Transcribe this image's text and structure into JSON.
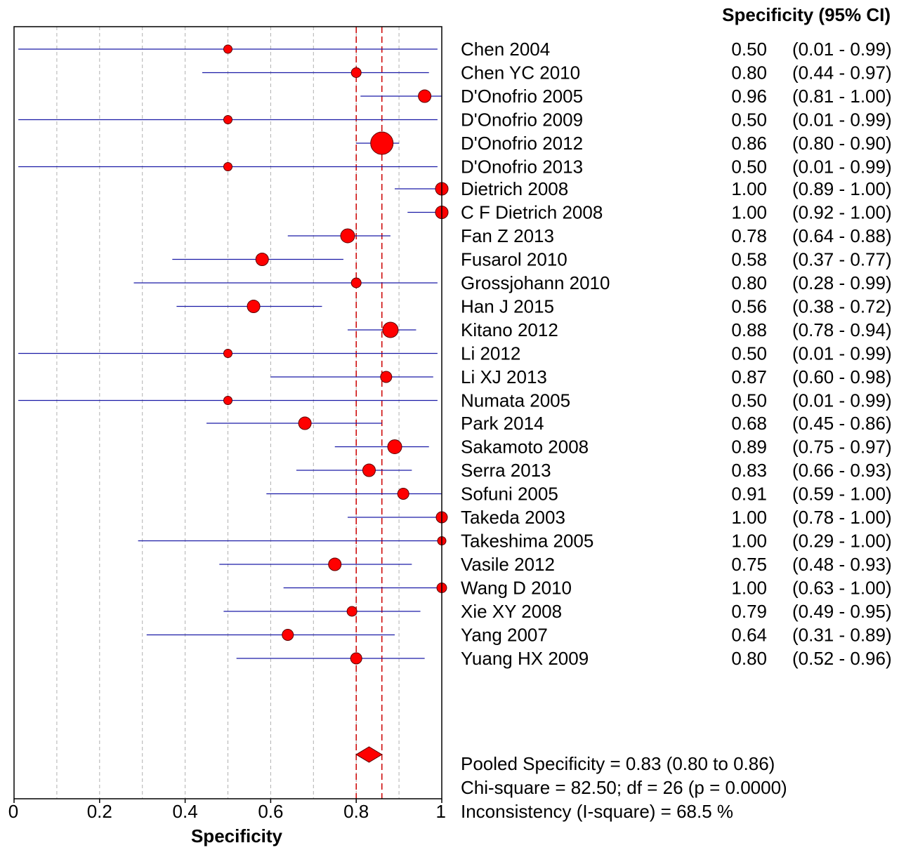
{
  "chart_data": {
    "type": "forest",
    "xlabel": "Specificity",
    "column_header": "Specificity (95% CI)",
    "xlim": [
      0,
      1
    ],
    "xticks": [
      0,
      0.2,
      0.4,
      0.6,
      0.8,
      1
    ],
    "xtick_labels": [
      "0",
      "0.2",
      "0.4",
      "0.6",
      "0.8",
      "1"
    ],
    "grid": true,
    "studies": [
      {
        "name": "Chen 2004",
        "value": 0.5,
        "lo": 0.01,
        "hi": 0.99,
        "value_text": "0.50",
        "ci_text": "(0.01 - 0.99)"
      },
      {
        "name": "Chen YC 2010",
        "value": 0.8,
        "lo": 0.44,
        "hi": 0.97,
        "value_text": "0.80",
        "ci_text": "(0.44 - 0.97)"
      },
      {
        "name": "D'Onofrio 2005",
        "value": 0.96,
        "lo": 0.81,
        "hi": 1.0,
        "value_text": "0.96",
        "ci_text": "(0.81 - 1.00)"
      },
      {
        "name": "D'Onofrio 2009",
        "value": 0.5,
        "lo": 0.01,
        "hi": 0.99,
        "value_text": "0.50",
        "ci_text": "(0.01 - 0.99)"
      },
      {
        "name": "D'Onofrio 2012",
        "value": 0.86,
        "lo": 0.8,
        "hi": 0.9,
        "value_text": "0.86",
        "ci_text": "(0.80 - 0.90)"
      },
      {
        "name": "D'Onofrio 2013",
        "value": 0.5,
        "lo": 0.01,
        "hi": 0.99,
        "value_text": "0.50",
        "ci_text": "(0.01 - 0.99)"
      },
      {
        "name": "Dietrich 2008",
        "value": 1.0,
        "lo": 0.89,
        "hi": 1.0,
        "value_text": "1.00",
        "ci_text": "(0.89 - 1.00)"
      },
      {
        "name": "C F Dietrich 2008",
        "value": 1.0,
        "lo": 0.92,
        "hi": 1.0,
        "value_text": "1.00",
        "ci_text": "(0.92 - 1.00)"
      },
      {
        "name": "Fan Z 2013",
        "value": 0.78,
        "lo": 0.64,
        "hi": 0.88,
        "value_text": "0.78",
        "ci_text": "(0.64 - 0.88)"
      },
      {
        "name": "Fusarol 2010",
        "value": 0.58,
        "lo": 0.37,
        "hi": 0.77,
        "value_text": "0.58",
        "ci_text": "(0.37 - 0.77)"
      },
      {
        "name": "Grossjohann 2010",
        "value": 0.8,
        "lo": 0.28,
        "hi": 0.99,
        "value_text": "0.80",
        "ci_text": "(0.28 - 0.99)"
      },
      {
        "name": "Han J 2015",
        "value": 0.56,
        "lo": 0.38,
        "hi": 0.72,
        "value_text": "0.56",
        "ci_text": "(0.38 - 0.72)"
      },
      {
        "name": "Kitano 2012",
        "value": 0.88,
        "lo": 0.78,
        "hi": 0.94,
        "value_text": "0.88",
        "ci_text": "(0.78 - 0.94)"
      },
      {
        "name": "Li 2012",
        "value": 0.5,
        "lo": 0.01,
        "hi": 0.99,
        "value_text": "0.50",
        "ci_text": "(0.01 - 0.99)"
      },
      {
        "name": "Li XJ 2013",
        "value": 0.87,
        "lo": 0.6,
        "hi": 0.98,
        "value_text": "0.87",
        "ci_text": "(0.60 - 0.98)"
      },
      {
        "name": "Numata 2005",
        "value": 0.5,
        "lo": 0.01,
        "hi": 0.99,
        "value_text": "0.50",
        "ci_text": "(0.01 - 0.99)"
      },
      {
        "name": "Park 2014",
        "value": 0.68,
        "lo": 0.45,
        "hi": 0.86,
        "value_text": "0.68",
        "ci_text": "(0.45 - 0.86)"
      },
      {
        "name": "Sakamoto 2008",
        "value": 0.89,
        "lo": 0.75,
        "hi": 0.97,
        "value_text": "0.89",
        "ci_text": "(0.75 - 0.97)"
      },
      {
        "name": "Serra 2013",
        "value": 0.83,
        "lo": 0.66,
        "hi": 0.93,
        "value_text": "0.83",
        "ci_text": "(0.66 - 0.93)"
      },
      {
        "name": "Sofuni 2005",
        "value": 0.91,
        "lo": 0.59,
        "hi": 1.0,
        "value_text": "0.91",
        "ci_text": "(0.59 - 1.00)"
      },
      {
        "name": "Takeda 2003",
        "value": 1.0,
        "lo": 0.78,
        "hi": 1.0,
        "value_text": "1.00",
        "ci_text": "(0.78 - 1.00)"
      },
      {
        "name": "Takeshima 2005",
        "value": 1.0,
        "lo": 0.29,
        "hi": 1.0,
        "value_text": "1.00",
        "ci_text": "(0.29 - 1.00)"
      },
      {
        "name": "Vasile 2012",
        "value": 0.75,
        "lo": 0.48,
        "hi": 0.93,
        "value_text": "0.75",
        "ci_text": "(0.48 - 0.93)"
      },
      {
        "name": "Wang D 2010",
        "value": 1.0,
        "lo": 0.63,
        "hi": 1.0,
        "value_text": "1.00",
        "ci_text": "(0.63 - 1.00)"
      },
      {
        "name": "Xie XY 2008",
        "value": 0.79,
        "lo": 0.49,
        "hi": 0.95,
        "value_text": "0.79",
        "ci_text": "(0.49 - 0.95)"
      },
      {
        "name": "Yang 2007",
        "value": 0.64,
        "lo": 0.31,
        "hi": 0.89,
        "value_text": "0.64",
        "ci_text": "(0.31 - 0.89)"
      },
      {
        "name": "Yuang HX 2009",
        "value": 0.8,
        "lo": 0.52,
        "hi": 0.96,
        "value_text": "0.80",
        "ci_text": "(0.52 - 0.96)"
      }
    ],
    "pooled": {
      "value": 0.83,
      "lo": 0.8,
      "hi": 0.86
    },
    "stats": [
      "Pooled Specificity = 0.83 (0.80 to 0.86)",
      "Chi-square = 82.50; df =  26 (p = 0.0000)",
      "Inconsistency (I-square) = 68.5 %"
    ],
    "colors": {
      "marker": "#ff0000",
      "marker_edge": "#5a0000",
      "ci_line": "#1a1aa6",
      "ref_line": "#cc0000",
      "grid": "#b0b0b0"
    }
  }
}
